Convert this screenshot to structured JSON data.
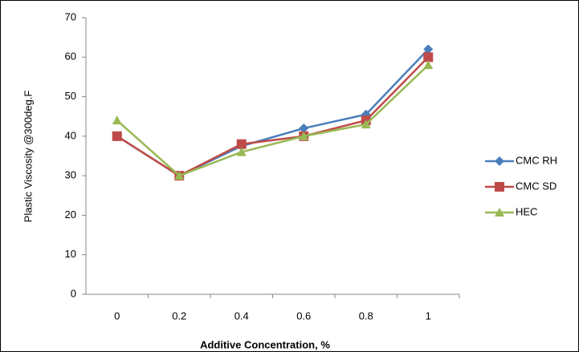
{
  "chart_data": {
    "type": "line",
    "x_label": "Additive Concentration, %",
    "y_label": "Plastic Viscosity @300deg.F",
    "categories": [
      "0",
      "0.2",
      "0.4",
      "0.6",
      "0.8",
      "1"
    ],
    "series": [
      {
        "name": "CMC RH",
        "color": "#4a7ebb",
        "marker": "diamond",
        "values": [
          40,
          30,
          37.5,
          42,
          45.5,
          62
        ]
      },
      {
        "name": "CMC SD",
        "color": "#be4b48",
        "marker": "square",
        "values": [
          40,
          30,
          38,
          40,
          44,
          60
        ]
      },
      {
        "name": "HEC",
        "color": "#98b954",
        "marker": "triangle",
        "values": [
          44,
          30,
          36,
          40,
          43,
          58
        ]
      }
    ],
    "ylim": [
      0,
      70
    ],
    "yticks": [
      0,
      10,
      20,
      30,
      40,
      50,
      60,
      70
    ],
    "grid": false,
    "legend": "right"
  }
}
